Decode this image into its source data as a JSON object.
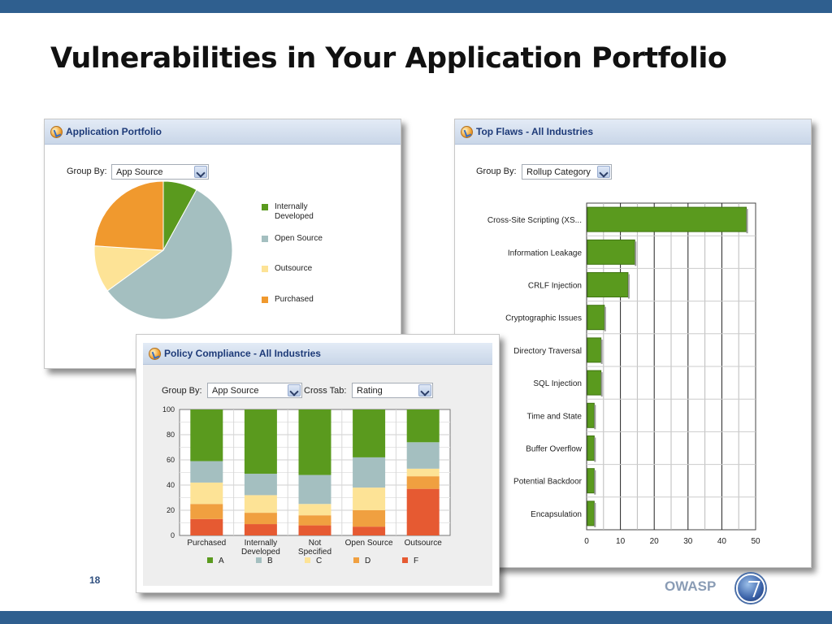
{
  "slide": {
    "title": "Vulnerabilities in Your Application Portfolio",
    "page_number": "18",
    "footer_logo_text": "OWASP",
    "bar_color": "#2f5f8f"
  },
  "portfolio_panel": {
    "title": "Application Portfolio",
    "group_by_label": "Group By:",
    "group_by_value": "App Source"
  },
  "flaws_panel": {
    "title": "Top Flaws - All Industries",
    "group_by_label": "Group By:",
    "group_by_value": "Rollup Category"
  },
  "compliance_panel": {
    "title": "Policy Compliance - All Industries",
    "group_by_label": "Group By:",
    "group_by_value": "App Source",
    "cross_tab_label": "Cross Tab:",
    "cross_tab_value": "Rating"
  },
  "chart_data": [
    {
      "type": "pie",
      "title": "",
      "slices": [
        {
          "label": "Internally Developed",
          "value": 8,
          "color": "#5a9a1e"
        },
        {
          "label": "Open Source",
          "value": 57,
          "color": "#a4bfc0"
        },
        {
          "label": "Outsource",
          "value": 11,
          "color": "#fde396"
        },
        {
          "label": "Purchased",
          "value": 24,
          "color": "#f0992e"
        }
      ],
      "legend_position": "right"
    },
    {
      "type": "bar",
      "orientation": "horizontal",
      "title": "",
      "categories": [
        "Cross-Site Scripting (XS...",
        "Information Leakage",
        "CRLF Injection",
        "Cryptographic Issues",
        "Directory Traversal",
        "SQL Injection",
        "Time and State",
        "Buffer Overflow",
        "Potential Backdoor",
        "Encapsulation"
      ],
      "values": [
        47,
        14,
        12,
        5,
        4,
        4,
        2,
        2,
        2,
        2
      ],
      "xlim": [
        0,
        50
      ],
      "x_ticks": [
        "0",
        "10",
        "20",
        "30",
        "40",
        "50"
      ],
      "bar_color": "#5a9a1e",
      "grid": true
    },
    {
      "type": "bar",
      "stacked": true,
      "title": "",
      "categories": [
        "Purchased",
        "Internally Developed",
        "Not Specified",
        "Open Source",
        "Outsource"
      ],
      "category_lines": [
        [
          "Purchased"
        ],
        [
          "Internally",
          "Developed"
        ],
        [
          "Not",
          "Specified"
        ],
        [
          "Open Source"
        ],
        [
          "Outsource"
        ]
      ],
      "series": [
        {
          "name": "F",
          "color": "#e65a32",
          "values": [
            13,
            9,
            8,
            7,
            37
          ]
        },
        {
          "name": "D",
          "color": "#f0a040",
          "values": [
            12,
            9,
            8,
            13,
            10
          ]
        },
        {
          "name": "C",
          "color": "#fde396",
          "values": [
            17,
            14,
            9,
            18,
            6
          ]
        },
        {
          "name": "B",
          "color": "#a4bfc0",
          "values": [
            17,
            17,
            23,
            24,
            21
          ]
        },
        {
          "name": "A",
          "color": "#5a9a1e",
          "values": [
            41,
            51,
            52,
            38,
            26
          ]
        }
      ],
      "legend_order": [
        "A",
        "B",
        "C",
        "D",
        "F"
      ],
      "ylim": [
        0,
        100
      ],
      "y_ticks": [
        "0",
        "20",
        "40",
        "60",
        "80",
        "100"
      ],
      "grid": true
    }
  ]
}
